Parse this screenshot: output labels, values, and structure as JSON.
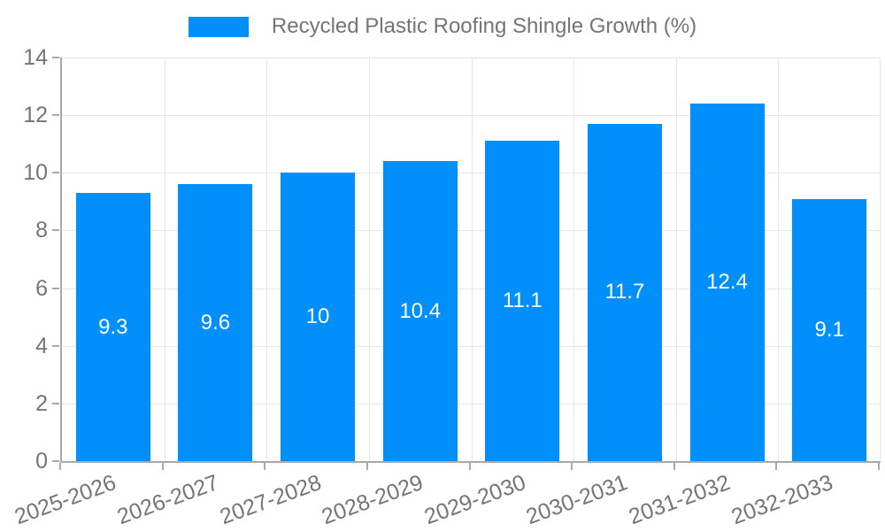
{
  "legend": {
    "label": "Recycled Plastic Roofing Shingle Growth (%)"
  },
  "chart_data": {
    "type": "bar",
    "title": "Recycled Plastic Roofing Shingle Growth (%)",
    "categories": [
      "2025-2026",
      "2026-2027",
      "2027-2028",
      "2028-2029",
      "2029-2030",
      "2030-2031",
      "2031-2032",
      "2032-2033"
    ],
    "values": [
      9.3,
      9.6,
      10,
      10.4,
      11.1,
      11.7,
      12.4,
      9.1
    ],
    "bar_labels": [
      "9.3",
      "9.6",
      "10",
      "10.4",
      "11.1",
      "11.7",
      "12.4",
      "9.1"
    ],
    "xlabel": "",
    "ylabel": "",
    "ylim": [
      0,
      14
    ],
    "yticks": [
      0,
      2,
      4,
      6,
      8,
      10,
      12,
      14
    ],
    "ytick_labels": [
      "0",
      "2",
      "4",
      "6",
      "8",
      "10",
      "12",
      "14"
    ],
    "grid": true,
    "legend_position": "top",
    "colors": {
      "bar": "#008FFB",
      "bar_value_label": "#ffffff",
      "axis_text": "#757575",
      "grid_line": "#e6e6e6",
      "axis_line": "#a9a9a9",
      "background": "#ffffff"
    }
  }
}
